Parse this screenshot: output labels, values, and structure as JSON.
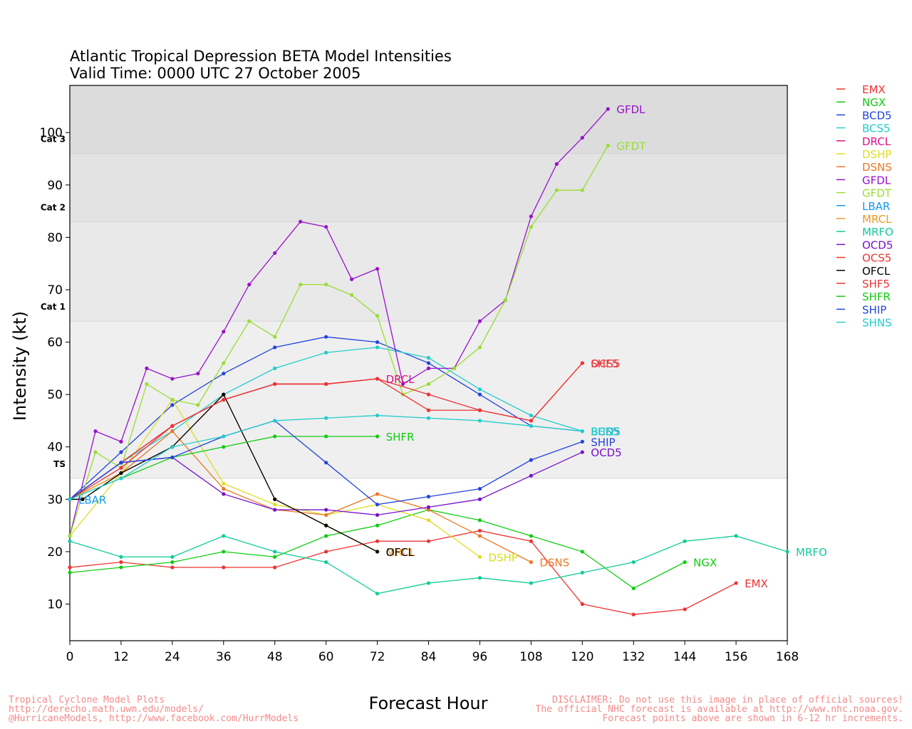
{
  "colors": {
    "EMX": "#ee3333",
    "NGX": "#11cc11",
    "BCD5": "#2244dd",
    "BCS5": "#22cccc",
    "DRCL": "#dd1188",
    "DSHP": "#dddd22",
    "DSNS": "#ee7722",
    "GFDL": "#9911cc",
    "GFDT": "#99dd33",
    "LBAR": "#1199ee",
    "MRCL": "#ee9922",
    "MRFO": "#11cc99",
    "OCD5": "#7711cc",
    "OCS5": "#ee3333",
    "OFCL": "#000000",
    "SHF5": "#ee3333",
    "SHFR": "#11cc11",
    "SHIP": "#2244dd",
    "SHNS": "#22cccc"
  },
  "footer": {
    "left_lines": [
      "Tropical Cyclone Model Plots",
      "http://derecho.math.uwm.edu/models/",
      "@HurricaneModels, http://www.facebook.com/HurrModels"
    ],
    "right_lines": [
      "DISCLAIMER: Do not use this image in place of official sources!",
      "The official NHC forecast is available at http://www.nhc.noaa.gov.",
      "Forecast points above are shown in 6-12 hr increments."
    ]
  },
  "chart_data": {
    "type": "line",
    "title": "Atlantic Tropical Depression BETA Model Intensities",
    "subtitle": "Valid Time: 0000 UTC 27 October 2005",
    "xlabel": "Forecast Hour",
    "ylabel": "Intensity (kt)",
    "xlim": [
      0,
      168
    ],
    "ylim": [
      3,
      109
    ],
    "xticks": [
      "0",
      "12",
      "24",
      "36",
      "48",
      "60",
      "72",
      "84",
      "96",
      "108",
      "120",
      "132",
      "144",
      "156",
      "168"
    ],
    "yticks": [
      "10",
      "20",
      "30",
      "40",
      "50",
      "60",
      "70",
      "80",
      "90",
      "100"
    ],
    "legend_position": "right",
    "bands": [
      {
        "label": "TS",
        "from": 34,
        "to": 64
      },
      {
        "label": "Cat 1",
        "from": 64,
        "to": 83
      },
      {
        "label": "Cat 2",
        "from": 83,
        "to": 96
      },
      {
        "label": "Cat 3",
        "from": 96,
        "to": 109
      }
    ],
    "band_labels": [
      "TS",
      "Cat 1",
      "Cat 2",
      "Cat 3"
    ],
    "series": [
      {
        "name": "EMX",
        "end_label": "EMX",
        "x": [
          0,
          12,
          24,
          36,
          48,
          60,
          72,
          84,
          96,
          108,
          120,
          132,
          144,
          156
        ],
        "y": [
          17,
          18,
          17,
          17,
          17,
          20,
          22,
          22,
          24,
          22,
          10,
          8,
          9,
          14
        ]
      },
      {
        "name": "NGX",
        "end_label": "NGX",
        "x": [
          0,
          12,
          24,
          36,
          48,
          60,
          72,
          84,
          96,
          108,
          120,
          132,
          144
        ],
        "y": [
          16,
          17,
          18,
          20,
          19,
          23,
          25,
          28,
          26,
          23,
          20,
          13,
          18
        ]
      },
      {
        "name": "BCD5",
        "end_label": "BCD5",
        "x": [
          0,
          12,
          24,
          36,
          48,
          60,
          72,
          84,
          96,
          108,
          120
        ],
        "y": [
          30,
          39,
          48,
          54,
          59,
          61,
          60,
          56,
          50,
          44,
          43
        ]
      },
      {
        "name": "BCS5",
        "end_label": "BCS5",
        "x": [
          0,
          12,
          24,
          36,
          48,
          60,
          72,
          84,
          96,
          108,
          120
        ],
        "y": [
          30,
          37,
          43,
          50,
          55,
          58,
          59,
          57,
          51,
          46,
          43
        ]
      },
      {
        "name": "DRCL",
        "end_label": "DRCL",
        "x": [
          0,
          12,
          24,
          36,
          48,
          60,
          72
        ],
        "y": [
          30,
          37,
          44,
          49,
          52,
          52,
          53
        ]
      },
      {
        "name": "DSHP",
        "end_label": "DSHP",
        "x": [
          0,
          12,
          24,
          36,
          48,
          60,
          72,
          84,
          96
        ],
        "y": [
          23,
          35,
          49,
          33,
          29,
          27,
          29,
          26,
          19
        ]
      },
      {
        "name": "DSNS",
        "end_label": "DSNS",
        "x": [
          0,
          12,
          24,
          36,
          48,
          60,
          72,
          84,
          96,
          108
        ],
        "y": [
          30,
          35,
          43,
          32,
          28,
          27,
          31,
          28,
          23,
          18
        ]
      },
      {
        "name": "GFDL",
        "end_label": "GFDL",
        "x": [
          0,
          6,
          12,
          18,
          24,
          30,
          36,
          42,
          48,
          54,
          60,
          66,
          72,
          78,
          84,
          90,
          96,
          102,
          108,
          114,
          120,
          126
        ],
        "y": [
          23,
          43,
          41,
          55,
          53,
          54,
          62,
          71,
          77,
          83,
          82,
          72,
          74,
          52,
          55,
          55,
          64,
          68,
          84,
          94,
          99,
          104.5
        ]
      },
      {
        "name": "GFDT",
        "end_label": "GFDT",
        "x": [
          0,
          6,
          12,
          18,
          24,
          30,
          36,
          42,
          48,
          54,
          60,
          66,
          72,
          78,
          84,
          90,
          96,
          102,
          108,
          114,
          120,
          126
        ],
        "y": [
          23,
          39,
          36,
          52,
          49,
          48,
          56,
          64,
          61,
          71,
          71,
          69,
          65,
          50,
          52,
          55,
          59,
          68,
          82,
          89,
          89,
          97.5
        ]
      },
      {
        "name": "LBAR",
        "end_label": "LBAR",
        "x": [
          0
        ],
        "y": [
          30
        ]
      },
      {
        "name": "MRCL",
        "end_label": "MRCL",
        "x": [
          0,
          12,
          24,
          36,
          48,
          60,
          72
        ],
        "y": [
          30,
          35,
          40,
          50,
          30,
          25,
          20
        ]
      },
      {
        "name": "MRFO",
        "end_label": "MRFO",
        "x": [
          0,
          12,
          24,
          36,
          48,
          60,
          72,
          84,
          96,
          108,
          120,
          132,
          144,
          156,
          168
        ],
        "y": [
          22,
          19,
          19,
          23,
          20,
          18,
          12,
          14,
          15,
          14,
          16,
          18,
          22,
          23,
          20
        ]
      },
      {
        "name": "OCD5",
        "end_label": "OCD5",
        "x": [
          0,
          12,
          24,
          36,
          48,
          60,
          72,
          84,
          96,
          108,
          120
        ],
        "y": [
          30,
          37,
          38,
          31,
          28,
          28,
          27,
          28.5,
          30,
          34.5,
          39
        ]
      },
      {
        "name": "OCS5",
        "end_label": "OCS5",
        "x": [
          0,
          12,
          24,
          36,
          48,
          60,
          72,
          84,
          96,
          108,
          120
        ],
        "y": [
          30,
          36,
          44,
          49,
          52,
          52,
          53,
          47,
          47,
          45,
          56
        ]
      },
      {
        "name": "OFCL",
        "end_label": "OFCL",
        "x": [
          0,
          3,
          12,
          24,
          36,
          48,
          60,
          72
        ],
        "y": [
          30,
          30,
          35,
          40,
          50,
          30,
          25,
          20
        ]
      },
      {
        "name": "SHF5",
        "end_label": "SHF5",
        "x": [
          0,
          12,
          24,
          36,
          48,
          60,
          72,
          84,
          96,
          108,
          120
        ],
        "y": [
          30,
          37,
          44,
          49,
          52,
          52,
          53,
          50,
          47,
          45,
          56
        ]
      },
      {
        "name": "SHFR",
        "end_label": "SHFR",
        "x": [
          0,
          12,
          24,
          36,
          48,
          60,
          72
        ],
        "y": [
          30,
          34,
          38,
          40,
          42,
          42,
          42
        ]
      },
      {
        "name": "SHIP",
        "end_label": "SHIP",
        "x": [
          0,
          12,
          24,
          36,
          48,
          60,
          72,
          84,
          96,
          108,
          120
        ],
        "y": [
          30,
          37,
          38,
          42,
          45,
          37,
          29,
          30.5,
          32,
          37.5,
          41
        ]
      },
      {
        "name": "SHNS",
        "end_label": "SHNS",
        "x": [
          0,
          12,
          24,
          36,
          48,
          60,
          72,
          84,
          96,
          108,
          120
        ],
        "y": [
          30,
          34,
          40,
          42,
          45,
          45.5,
          46,
          45.5,
          45,
          44,
          43
        ]
      }
    ]
  }
}
